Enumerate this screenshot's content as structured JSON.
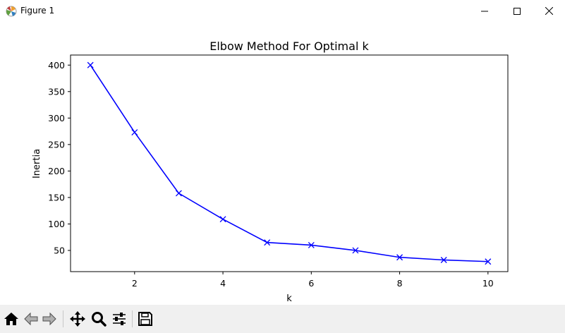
{
  "window": {
    "title": "Figure 1",
    "icons": {
      "app": "matplotlib-figure-icon",
      "minimize": "minimize-icon",
      "maximize": "maximize-icon",
      "close": "close-icon"
    }
  },
  "toolbar": {
    "items": [
      {
        "name": "home-button",
        "icon": "home-icon"
      },
      {
        "name": "back-button",
        "icon": "arrow-left-icon"
      },
      {
        "name": "forward-button",
        "icon": "arrow-right-icon"
      },
      {
        "name": "pan-button",
        "icon": "move-icon"
      },
      {
        "name": "zoom-button",
        "icon": "magnifier-icon"
      },
      {
        "name": "configure-subplots-button",
        "icon": "sliders-icon"
      },
      {
        "name": "save-button",
        "icon": "floppy-disk-icon"
      }
    ]
  },
  "chart_data": {
    "type": "line",
    "title": "Elbow Method For Optimal k",
    "xlabel": "k",
    "ylabel": "Inertia",
    "x": [
      1,
      2,
      3,
      4,
      5,
      6,
      7,
      8,
      9,
      10
    ],
    "series": [
      {
        "values": [
          400,
          273,
          158,
          109,
          65,
          60,
          50,
          37,
          32,
          29
        ],
        "color": "#0000ff",
        "marker": "x"
      }
    ],
    "xlim": [
      0.55,
      10.45
    ],
    "ylim": [
      10,
      419
    ],
    "xticks": [
      2,
      4,
      6,
      8,
      10
    ],
    "yticks": [
      50,
      100,
      150,
      200,
      250,
      300,
      350,
      400
    ],
    "grid": false
  }
}
